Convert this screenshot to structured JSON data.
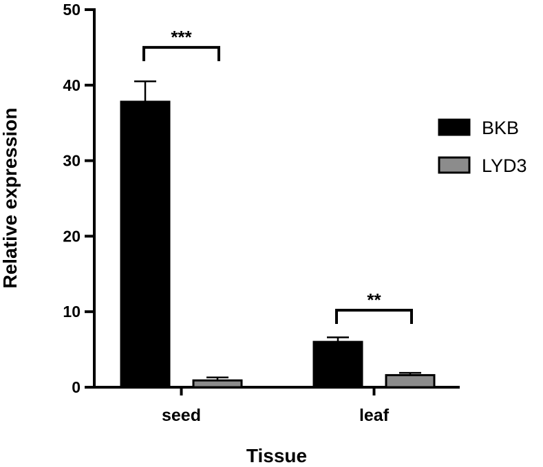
{
  "chart_data": {
    "type": "bar",
    "xlabel": "Tissue",
    "ylabel": "Relative expression",
    "ylim": [
      0,
      50
    ],
    "yticks": [
      0,
      10,
      20,
      30,
      40,
      50
    ],
    "categories": [
      "seed",
      "leaf"
    ],
    "series": [
      {
        "name": "BKB",
        "values": [
          37.8,
          6.0
        ],
        "errors": [
          2.7,
          0.6
        ],
        "color": "#000000"
      },
      {
        "name": "LYD3",
        "values": [
          0.9,
          1.6
        ],
        "errors": [
          0.4,
          0.3
        ],
        "color": "#8c8c8c"
      }
    ],
    "significance": [
      {
        "category": "seed",
        "label": "***",
        "level": 45.0
      },
      {
        "category": "leaf",
        "label": "**",
        "level": 10.2
      }
    ],
    "legend_position": "right",
    "grid": false
  }
}
